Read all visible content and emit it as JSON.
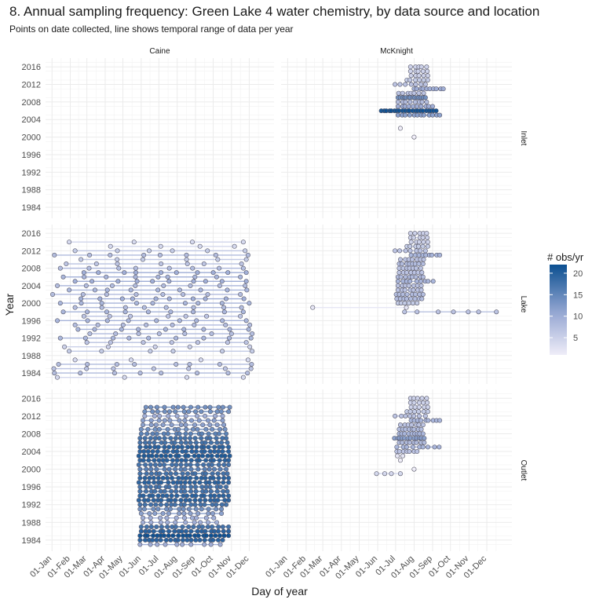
{
  "chart_data": {
    "type": "scatter",
    "title": "8. Annual sampling frequency: Green Lake 4 water chemistry, by data source and location",
    "subtitle": "Points on date collected, line shows temporal range of data per year",
    "xlabel": "Day of year",
    "ylabel": "Year",
    "x_ticks": [
      "01-Jan",
      "01-Feb",
      "01-Mar",
      "01-Apr",
      "01-May",
      "01-Jun",
      "01-Jul",
      "01-Aug",
      "01-Sep",
      "01-Oct",
      "01-Nov",
      "01-Dec"
    ],
    "x_tick_days": [
      1,
      32,
      60,
      91,
      121,
      152,
      182,
      213,
      244,
      274,
      305,
      335
    ],
    "xlim": [
      -10,
      377
    ],
    "y_ticks": [
      1984,
      1988,
      1992,
      1996,
      2000,
      2004,
      2008,
      2012,
      2016
    ],
    "ylim": [
      1981.5,
      2018
    ],
    "columns": [
      "Caine",
      "McKnight"
    ],
    "rows": [
      "Inlet",
      "Lake",
      "Outlet"
    ],
    "grid": true,
    "legend": {
      "title": "# obs/yr",
      "ticks": [
        5,
        10,
        15,
        20
      ],
      "range": [
        1,
        22
      ],
      "low_color": "#efedf8",
      "high_color": "#0b4f91",
      "placement": "right"
    },
    "panels": [
      {
        "col": "Caine",
        "row": "Inlet",
        "years": []
      },
      {
        "col": "McKnight",
        "row": "Inlet",
        "years": [
          {
            "year": 2000,
            "n": 1,
            "start": 213,
            "end": 213
          },
          {
            "year": 2002,
            "n": 1,
            "start": 190,
            "end": 190
          },
          {
            "year": 2005,
            "n": 12,
            "start": 186,
            "end": 256
          },
          {
            "year": 2006,
            "n": 22,
            "start": 158,
            "end": 250
          },
          {
            "year": 2007,
            "n": 10,
            "start": 186,
            "end": 244
          },
          {
            "year": 2008,
            "n": 8,
            "start": 186,
            "end": 234
          },
          {
            "year": 2009,
            "n": 14,
            "start": 186,
            "end": 232
          },
          {
            "year": 2010,
            "n": 7,
            "start": 187,
            "end": 229
          },
          {
            "year": 2011,
            "n": 10,
            "start": 213,
            "end": 262
          },
          {
            "year": 2012,
            "n": 7,
            "start": 181,
            "end": 232
          },
          {
            "year": 2013,
            "n": 6,
            "start": 201,
            "end": 236
          },
          {
            "year": 2014,
            "n": 5,
            "start": 208,
            "end": 236
          },
          {
            "year": 2015,
            "n": 5,
            "start": 207,
            "end": 235
          },
          {
            "year": 2016,
            "n": 5,
            "start": 207,
            "end": 234
          }
        ]
      },
      {
        "col": "Caine",
        "row": "Lake",
        "years": [
          {
            "year": 1983,
            "n": 4,
            "start": 10,
            "end": 325
          },
          {
            "year": 1984,
            "n": 8,
            "start": 5,
            "end": 332
          },
          {
            "year": 1985,
            "n": 7,
            "start": 4,
            "end": 338
          },
          {
            "year": 1986,
            "n": 8,
            "start": 12,
            "end": 339
          },
          {
            "year": 1987,
            "n": 4,
            "start": 40,
            "end": 333
          },
          {
            "year": 1989,
            "n": 6,
            "start": 30,
            "end": 340
          },
          {
            "year": 1990,
            "n": 5,
            "start": 22,
            "end": 336
          },
          {
            "year": 1991,
            "n": 7,
            "start": 60,
            "end": 330
          },
          {
            "year": 1992,
            "n": 9,
            "start": 15,
            "end": 338
          },
          {
            "year": 1993,
            "n": 8,
            "start": 65,
            "end": 340
          },
          {
            "year": 1994,
            "n": 9,
            "start": 45,
            "end": 334
          },
          {
            "year": 1995,
            "n": 8,
            "start": 40,
            "end": 336
          },
          {
            "year": 1996,
            "n": 9,
            "start": 10,
            "end": 330
          },
          {
            "year": 1997,
            "n": 7,
            "start": 55,
            "end": 320
          },
          {
            "year": 1998,
            "n": 9,
            "start": 20,
            "end": 325
          },
          {
            "year": 1999,
            "n": 8,
            "start": 40,
            "end": 322
          },
          {
            "year": 2000,
            "n": 9,
            "start": 15,
            "end": 335
          },
          {
            "year": 2001,
            "n": 10,
            "start": 50,
            "end": 326
          },
          {
            "year": 2002,
            "n": 8,
            "start": 2,
            "end": 320
          },
          {
            "year": 2003,
            "n": 9,
            "start": 30,
            "end": 331
          },
          {
            "year": 2004,
            "n": 8,
            "start": 10,
            "end": 328
          },
          {
            "year": 2005,
            "n": 10,
            "start": 40,
            "end": 330
          },
          {
            "year": 2006,
            "n": 9,
            "start": 20,
            "end": 320
          },
          {
            "year": 2007,
            "n": 10,
            "start": 55,
            "end": 330
          },
          {
            "year": 2008,
            "n": 8,
            "start": 15,
            "end": 325
          },
          {
            "year": 2009,
            "n": 7,
            "start": 25,
            "end": 322
          },
          {
            "year": 2010,
            "n": 6,
            "start": 50,
            "end": 330
          },
          {
            "year": 2011,
            "n": 8,
            "start": 5,
            "end": 333
          },
          {
            "year": 2012,
            "n": 6,
            "start": 40,
            "end": 328
          },
          {
            "year": 2013,
            "n": 4,
            "start": 100,
            "end": 310
          },
          {
            "year": 2014,
            "n": 4,
            "start": 30,
            "end": 325
          }
        ]
      },
      {
        "col": "McKnight",
        "row": "Lake",
        "years": [
          {
            "year": 1998,
            "n": 7,
            "start": 197,
            "end": 351
          },
          {
            "year": 1999,
            "n": 2,
            "start": 43,
            "end": 200
          },
          {
            "year": 2000,
            "n": 6,
            "start": 186,
            "end": 218
          },
          {
            "year": 2001,
            "n": 8,
            "start": 184,
            "end": 226
          },
          {
            "year": 2002,
            "n": 8,
            "start": 183,
            "end": 228
          },
          {
            "year": 2003,
            "n": 7,
            "start": 186,
            "end": 225
          },
          {
            "year": 2004,
            "n": 7,
            "start": 186,
            "end": 225
          },
          {
            "year": 2005,
            "n": 9,
            "start": 186,
            "end": 245
          },
          {
            "year": 2006,
            "n": 8,
            "start": 186,
            "end": 228
          },
          {
            "year": 2007,
            "n": 7,
            "start": 188,
            "end": 226
          },
          {
            "year": 2008,
            "n": 7,
            "start": 188,
            "end": 224
          },
          {
            "year": 2009,
            "n": 8,
            "start": 188,
            "end": 228
          },
          {
            "year": 2010,
            "n": 7,
            "start": 190,
            "end": 229
          },
          {
            "year": 2011,
            "n": 9,
            "start": 208,
            "end": 256
          },
          {
            "year": 2012,
            "n": 7,
            "start": 181,
            "end": 232
          },
          {
            "year": 2013,
            "n": 6,
            "start": 201,
            "end": 236
          },
          {
            "year": 2014,
            "n": 5,
            "start": 208,
            "end": 236
          },
          {
            "year": 2015,
            "n": 5,
            "start": 207,
            "end": 235
          },
          {
            "year": 2016,
            "n": 5,
            "start": 207,
            "end": 234
          }
        ]
      },
      {
        "col": "Caine",
        "row": "Outlet",
        "years": [
          {
            "year": 1983,
            "n": 10,
            "start": 150,
            "end": 286
          },
          {
            "year": 1984,
            "n": 20,
            "start": 150,
            "end": 290
          },
          {
            "year": 1985,
            "n": 22,
            "start": 150,
            "end": 300
          },
          {
            "year": 1986,
            "n": 20,
            "start": 152,
            "end": 300
          },
          {
            "year": 1987,
            "n": 18,
            "start": 152,
            "end": 300
          },
          {
            "year": 1988,
            "n": 10,
            "start": 155,
            "end": 280
          },
          {
            "year": 1989,
            "n": 10,
            "start": 155,
            "end": 275
          },
          {
            "year": 1990,
            "n": 12,
            "start": 152,
            "end": 288
          },
          {
            "year": 1991,
            "n": 14,
            "start": 150,
            "end": 288
          },
          {
            "year": 1992,
            "n": 18,
            "start": 150,
            "end": 296
          },
          {
            "year": 1993,
            "n": 20,
            "start": 148,
            "end": 300
          },
          {
            "year": 1994,
            "n": 20,
            "start": 150,
            "end": 300
          },
          {
            "year": 1995,
            "n": 18,
            "start": 150,
            "end": 298
          },
          {
            "year": 1996,
            "n": 18,
            "start": 150,
            "end": 296
          },
          {
            "year": 1997,
            "n": 20,
            "start": 148,
            "end": 300
          },
          {
            "year": 1998,
            "n": 20,
            "start": 150,
            "end": 300
          },
          {
            "year": 1999,
            "n": 18,
            "start": 150,
            "end": 298
          },
          {
            "year": 2000,
            "n": 16,
            "start": 150,
            "end": 296
          },
          {
            "year": 2001,
            "n": 18,
            "start": 148,
            "end": 300
          },
          {
            "year": 2002,
            "n": 20,
            "start": 150,
            "end": 300
          },
          {
            "year": 2003,
            "n": 21,
            "start": 148,
            "end": 302
          },
          {
            "year": 2004,
            "n": 20,
            "start": 150,
            "end": 300
          },
          {
            "year": 2005,
            "n": 20,
            "start": 150,
            "end": 300
          },
          {
            "year": 2006,
            "n": 18,
            "start": 150,
            "end": 298
          },
          {
            "year": 2007,
            "n": 18,
            "start": 150,
            "end": 296
          },
          {
            "year": 2008,
            "n": 16,
            "start": 152,
            "end": 296
          },
          {
            "year": 2009,
            "n": 14,
            "start": 152,
            "end": 294
          },
          {
            "year": 2010,
            "n": 12,
            "start": 155,
            "end": 292
          },
          {
            "year": 2011,
            "n": 12,
            "start": 155,
            "end": 290
          },
          {
            "year": 2012,
            "n": 10,
            "start": 158,
            "end": 290
          },
          {
            "year": 2013,
            "n": 14,
            "start": 158,
            "end": 300
          },
          {
            "year": 2014,
            "n": 14,
            "start": 160,
            "end": 302
          }
        ]
      },
      {
        "col": "McKnight",
        "row": "Outlet",
        "years": [
          {
            "year": 1999,
            "n": 4,
            "start": 150,
            "end": 190
          },
          {
            "year": 2000,
            "n": 1,
            "start": 213,
            "end": 213
          },
          {
            "year": 2002,
            "n": 1,
            "start": 190,
            "end": 190
          },
          {
            "year": 2003,
            "n": 2,
            "start": 185,
            "end": 194
          },
          {
            "year": 2004,
            "n": 7,
            "start": 184,
            "end": 218
          },
          {
            "year": 2005,
            "n": 9,
            "start": 184,
            "end": 255
          },
          {
            "year": 2006,
            "n": 8,
            "start": 188,
            "end": 230
          },
          {
            "year": 2007,
            "n": 12,
            "start": 180,
            "end": 230
          },
          {
            "year": 2008,
            "n": 9,
            "start": 188,
            "end": 228
          },
          {
            "year": 2009,
            "n": 8,
            "start": 188,
            "end": 225
          },
          {
            "year": 2010,
            "n": 7,
            "start": 190,
            "end": 228
          },
          {
            "year": 2011,
            "n": 9,
            "start": 208,
            "end": 256
          },
          {
            "year": 2012,
            "n": 7,
            "start": 181,
            "end": 232
          },
          {
            "year": 2013,
            "n": 6,
            "start": 201,
            "end": 236
          },
          {
            "year": 2014,
            "n": 5,
            "start": 208,
            "end": 236
          },
          {
            "year": 2015,
            "n": 5,
            "start": 207,
            "end": 235
          },
          {
            "year": 2016,
            "n": 5,
            "start": 207,
            "end": 234
          }
        ]
      }
    ]
  }
}
